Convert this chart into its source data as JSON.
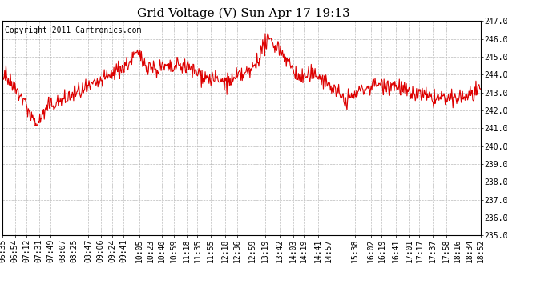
{
  "title": "Grid Voltage (V) Sun Apr 17 19:13",
  "copyright": "Copyright 2011 Cartronics.com",
  "line_color": "#dd0000",
  "background_color": "#ffffff",
  "plot_bg_color": "#ffffff",
  "grid_color": "#aaaaaa",
  "ylim": [
    235.0,
    247.0
  ],
  "xtick_labels": [
    "06:35",
    "06:54",
    "07:12",
    "07:31",
    "07:49",
    "08:07",
    "08:25",
    "08:47",
    "09:06",
    "09:24",
    "09:41",
    "10:05",
    "10:23",
    "10:40",
    "10:59",
    "11:18",
    "11:35",
    "11:55",
    "12:18",
    "12:36",
    "12:59",
    "13:19",
    "13:42",
    "14:03",
    "14:19",
    "14:41",
    "14:57",
    "15:38",
    "16:02",
    "16:19",
    "16:41",
    "17:01",
    "17:17",
    "17:37",
    "17:58",
    "18:16",
    "18:34",
    "18:52"
  ],
  "title_fontsize": 11,
  "tick_fontsize": 7,
  "copyright_fontsize": 7,
  "linewidth": 0.8
}
